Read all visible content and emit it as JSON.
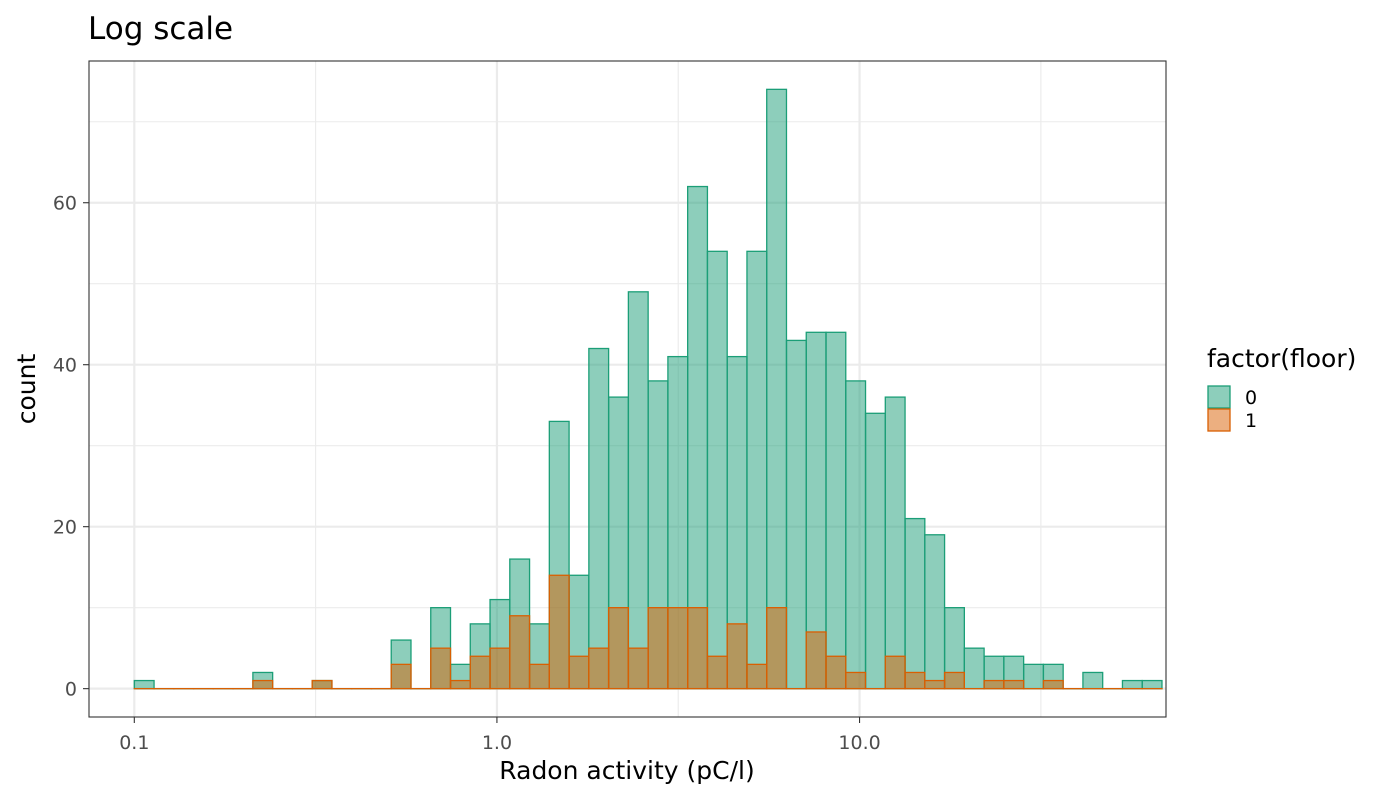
{
  "chart_data": {
    "type": "bar",
    "title": "Log scale",
    "xlabel": "Radon activity (pC/l)",
    "ylabel": "count",
    "x_scale": "log10",
    "x_range": [
      0.075,
      70
    ],
    "x_ticks": [
      0.1,
      1.0,
      10.0
    ],
    "x_tick_labels": [
      "0.1",
      "1.0",
      "10.0"
    ],
    "ylim": [
      -3.5,
      77.5
    ],
    "y_ticks": [
      0,
      20,
      40,
      60
    ],
    "y_tick_labels": [
      "0",
      "20",
      "40",
      "60"
    ],
    "grid": true,
    "stacked": false,
    "bin_log10_start": -1.0,
    "bin_log10_width": 0.0545,
    "legend": {
      "title": "factor(floor)",
      "position": "right",
      "entries": [
        "0",
        "1"
      ]
    },
    "series": [
      {
        "name": "0",
        "fill": "#1b9e77",
        "fill_opacity": 0.5,
        "stroke": "#1b9e77",
        "values": [
          1,
          0,
          0,
          0,
          0,
          0,
          2,
          0,
          0,
          1,
          0,
          0,
          0,
          6,
          0,
          10,
          3,
          8,
          11,
          16,
          8,
          33,
          14,
          42,
          36,
          49,
          38,
          41,
          62,
          54,
          41,
          54,
          74,
          43,
          44,
          44,
          38,
          34,
          36,
          21,
          19,
          10,
          5,
          4,
          4,
          3,
          3,
          0,
          2,
          0,
          1,
          1
        ]
      },
      {
        "name": "1",
        "fill": "#d95f02",
        "fill_opacity": 0.5,
        "stroke": "#d95f02",
        "values": [
          0,
          0,
          0,
          0,
          0,
          0,
          1,
          0,
          0,
          1,
          0,
          0,
          0,
          3,
          0,
          5,
          1,
          4,
          5,
          9,
          3,
          14,
          4,
          5,
          10,
          5,
          10,
          10,
          10,
          4,
          8,
          3,
          10,
          0,
          7,
          4,
          2,
          0,
          4,
          2,
          1,
          2,
          0,
          1,
          1,
          0,
          1,
          0,
          0,
          0,
          0,
          0
        ]
      }
    ]
  }
}
